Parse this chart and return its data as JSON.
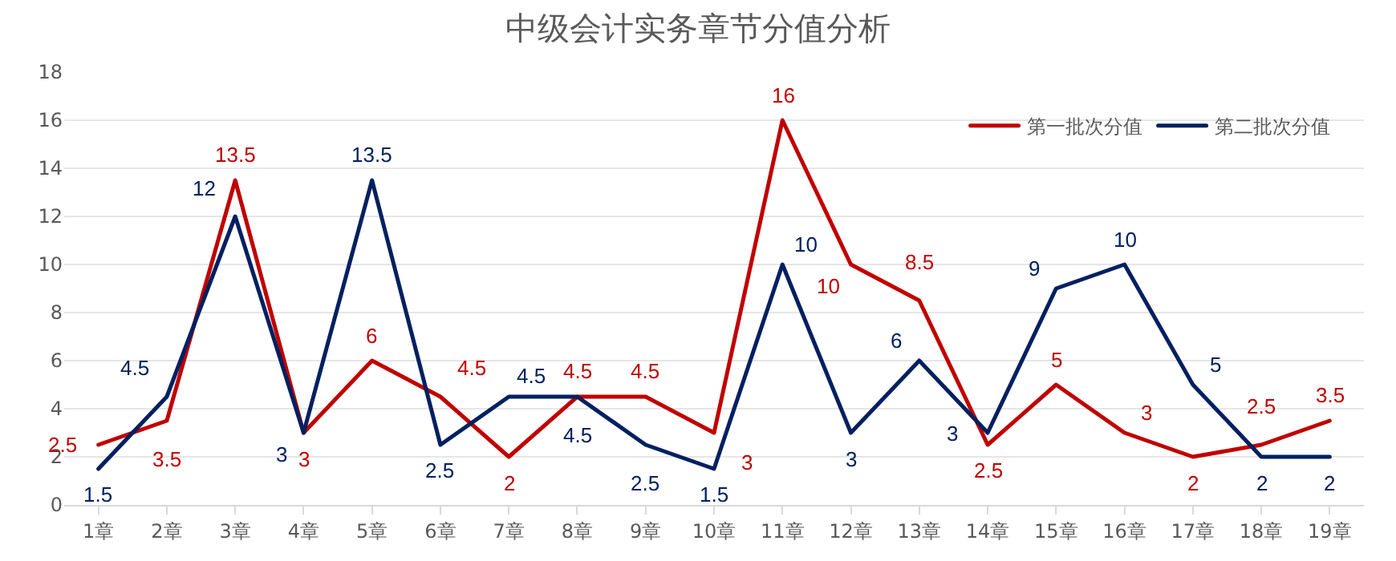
{
  "chart_data": {
    "type": "line",
    "title": "中级会计实务章节分值分析",
    "categories": [
      "1章",
      "2章",
      "3章",
      "4章",
      "5章",
      "6章",
      "7章",
      "8章",
      "9章",
      "10章",
      "11章",
      "12章",
      "13章",
      "14章",
      "15章",
      "16章",
      "17章",
      "18章",
      "19章"
    ],
    "series": [
      {
        "name": "第一批次分值",
        "color": "#c00000",
        "values": [
          2.5,
          3.5,
          13.5,
          3,
          6,
          4.5,
          2,
          4.5,
          4.5,
          3,
          16,
          10,
          8.5,
          2.5,
          5,
          3,
          2,
          2.5,
          3.5
        ]
      },
      {
        "name": "第二批次分值",
        "color": "#002060",
        "values": [
          1.5,
          4.5,
          12,
          3,
          13.5,
          2.5,
          4.5,
          4.5,
          2.5,
          1.5,
          10,
          3,
          6,
          3,
          9,
          10,
          5,
          2,
          2
        ]
      }
    ],
    "ylim": [
      0,
      18
    ],
    "yticks": [
      0,
      2,
      4,
      6,
      8,
      10,
      12,
      14,
      16,
      18
    ],
    "grid": "y",
    "legend": "top right",
    "marker": "none",
    "line_style": "solid",
    "data_labels": true
  }
}
